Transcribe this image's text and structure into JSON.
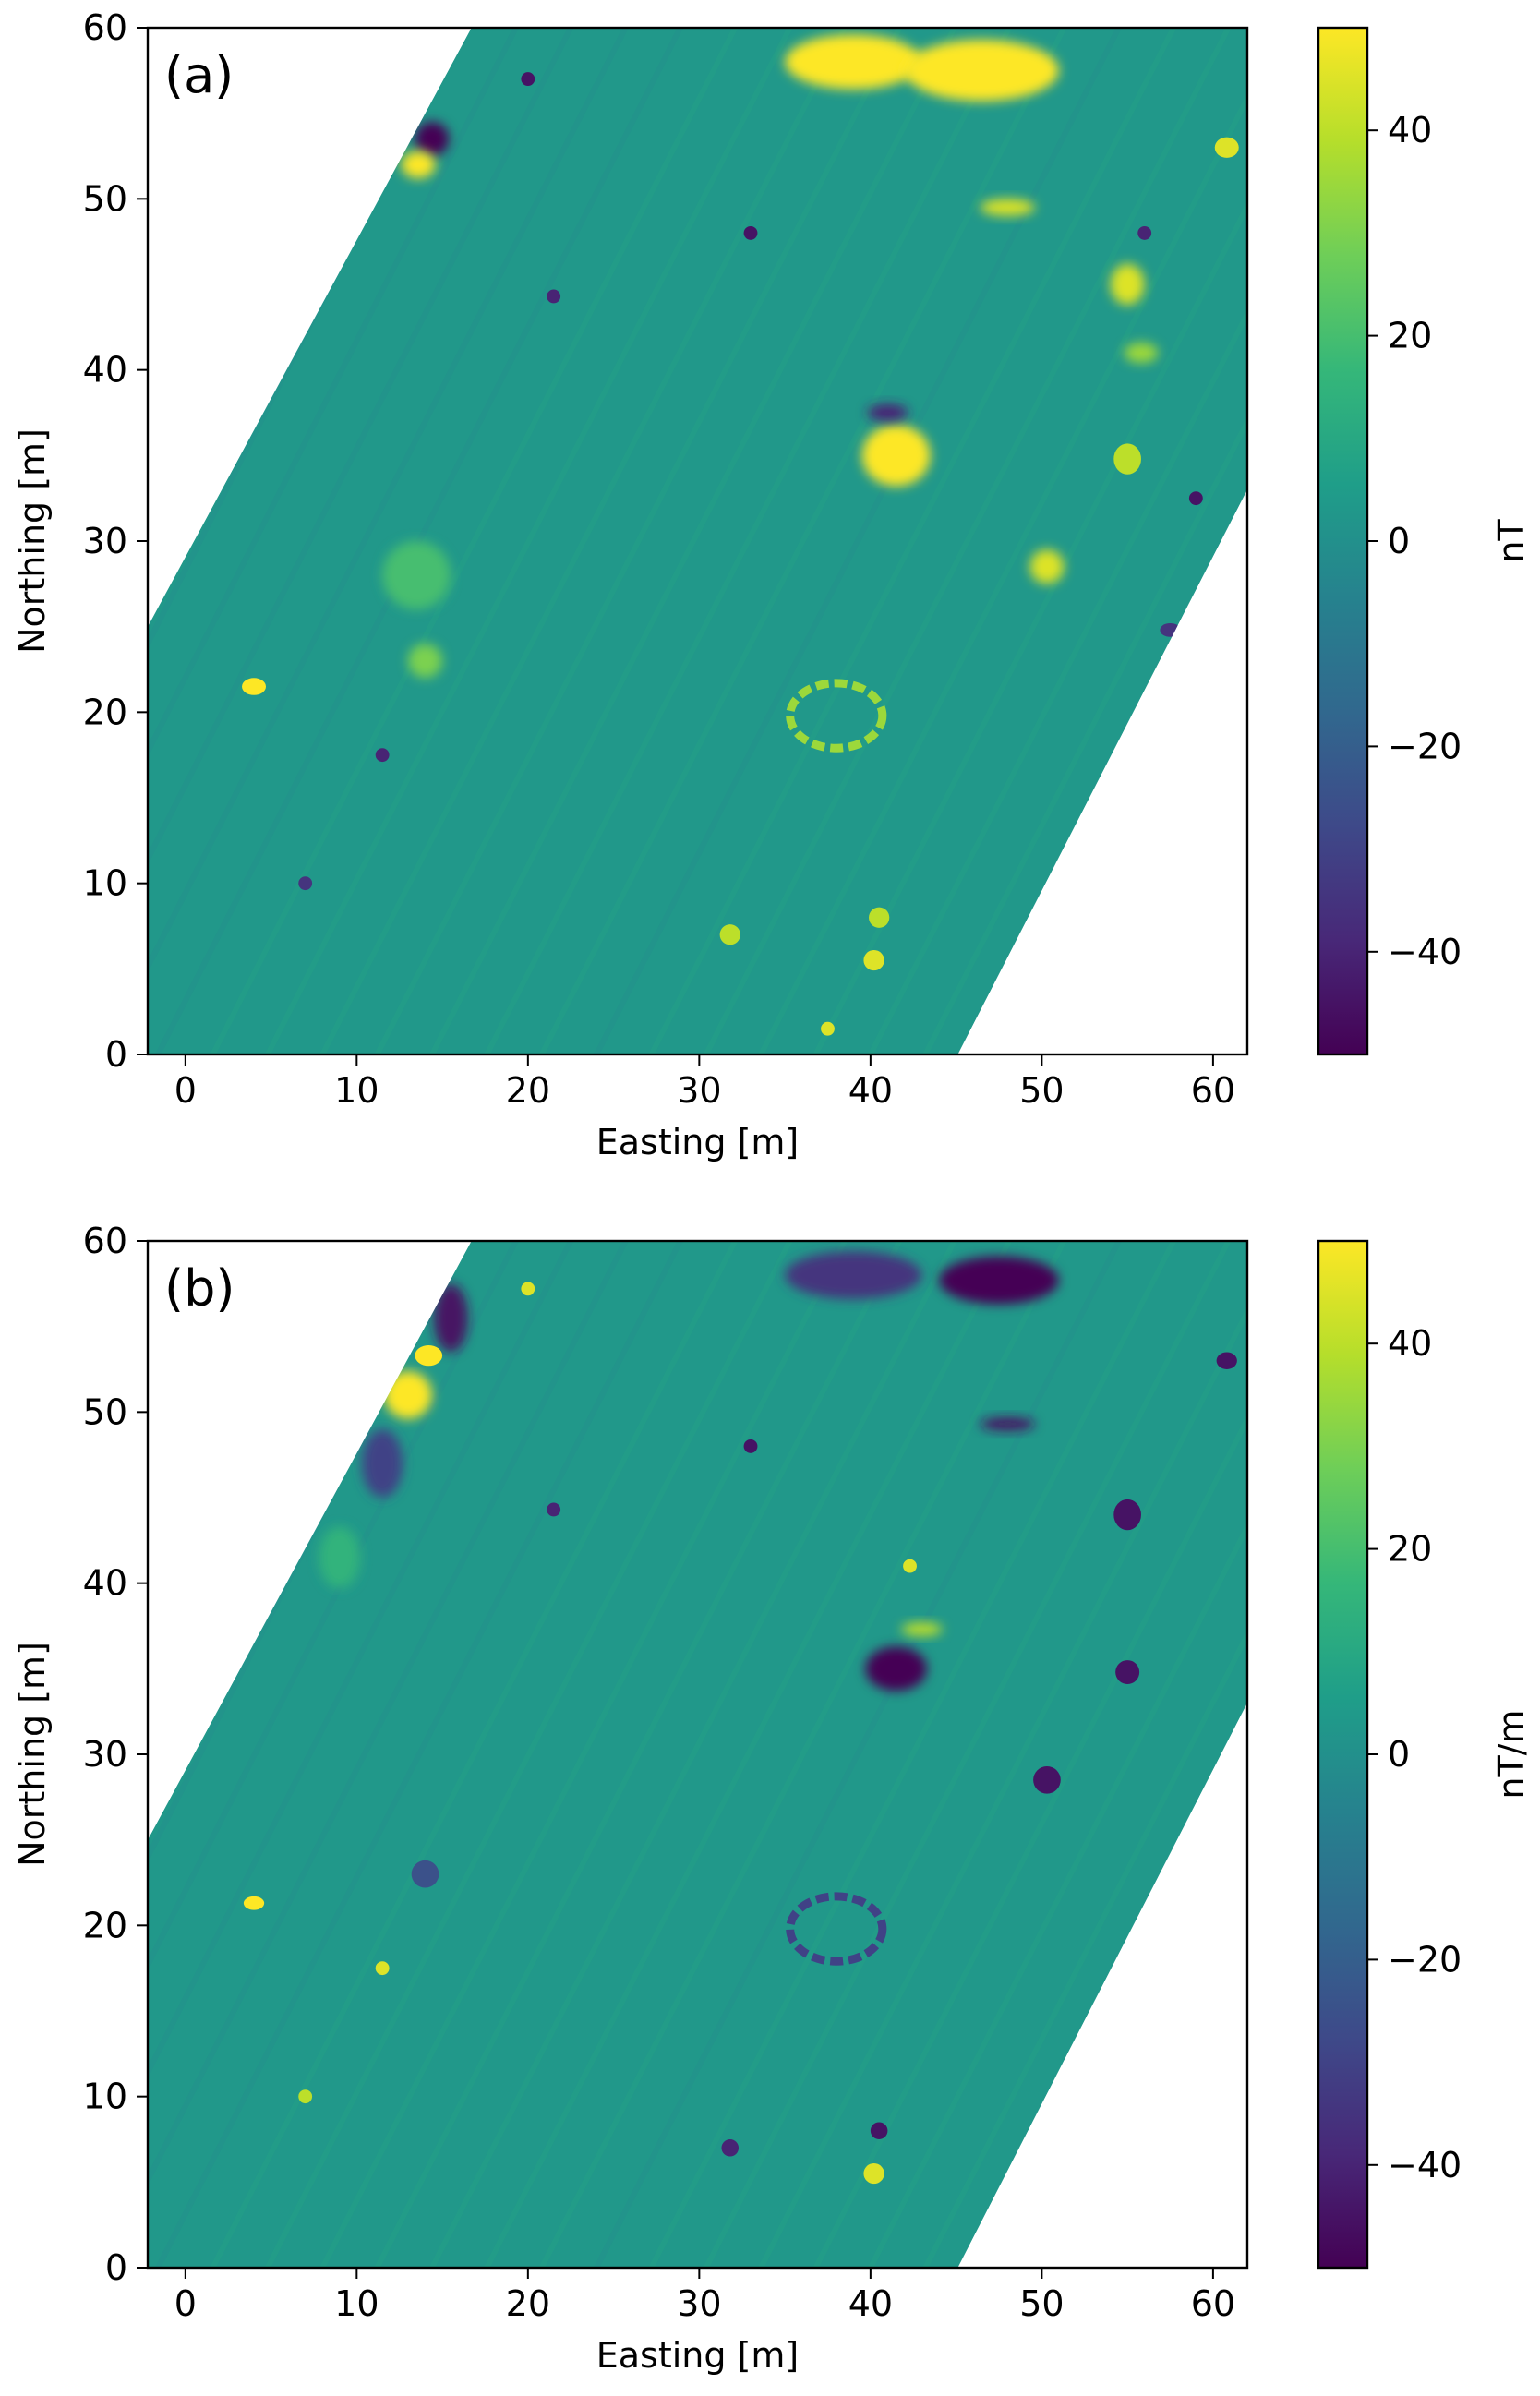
{
  "colormap": [
    "#440154",
    "#482878",
    "#3e4989",
    "#31688e",
    "#26828e",
    "#1f9e89",
    "#35b779",
    "#6ece58",
    "#b5de2b",
    "#fde725"
  ],
  "chart_data": [
    {
      "type": "heatmap",
      "panel_label": "(a)",
      "xlabel": "Easting [m]",
      "ylabel": "Northing [m]",
      "xlim": [
        -2.2,
        62
      ],
      "ylim": [
        0,
        60
      ],
      "x_ticks": [
        0,
        10,
        20,
        30,
        40,
        50,
        60
      ],
      "y_ticks": [
        0,
        10,
        20,
        30,
        40,
        50,
        60
      ],
      "colorbar": {
        "label": "nT",
        "range": [
          -50,
          50
        ],
        "ticks": [
          40,
          20,
          0,
          -20,
          -40
        ],
        "tick_labels": [
          "40",
          "20",
          "0",
          "−20",
          "−40"
        ]
      },
      "survey_outline": [
        [
          -2.2,
          0
        ],
        [
          45.1,
          0
        ],
        [
          62,
          33
        ],
        [
          62,
          60
        ],
        [
          16.7,
          60
        ],
        [
          -2.2,
          25
        ]
      ],
      "background_value": 3,
      "anomalies": [
        {
          "x": 39,
          "y": 58,
          "rx": 4,
          "ry": 1.6,
          "value": 50
        },
        {
          "x": 46.5,
          "y": 57.5,
          "rx": 4.5,
          "ry": 1.8,
          "value": 50
        },
        {
          "x": 14.4,
          "y": 53.5,
          "rx": 1.0,
          "ry": 1.0,
          "value": -50
        },
        {
          "x": 13.6,
          "y": 52.0,
          "rx": 1.0,
          "ry": 0.8,
          "value": 50
        },
        {
          "x": 41.5,
          "y": 35.0,
          "rx": 2.0,
          "ry": 1.8,
          "value": 50
        },
        {
          "x": 41.0,
          "y": 37.5,
          "rx": 1.2,
          "ry": 0.5,
          "value": -40
        },
        {
          "x": 55.0,
          "y": 45.0,
          "rx": 1.0,
          "ry": 1.2,
          "value": 45
        },
        {
          "x": 50.3,
          "y": 28.5,
          "rx": 1.0,
          "ry": 1.0,
          "value": 45
        },
        {
          "x": 55.0,
          "y": 34.8,
          "rx": 0.8,
          "ry": 0.9,
          "value": 40
        },
        {
          "x": 48.0,
          "y": 49.5,
          "rx": 1.6,
          "ry": 0.5,
          "value": 45
        },
        {
          "x": 4.0,
          "y": 21.5,
          "rx": 0.7,
          "ry": 0.5,
          "value": 50
        },
        {
          "x": 13.5,
          "y": 28.0,
          "rx": 2.0,
          "ry": 2.0,
          "value": 20
        },
        {
          "x": 14.0,
          "y": 23.0,
          "rx": 1.0,
          "ry": 1.0,
          "value": 30
        },
        {
          "x": 40.2,
          "y": 5.5,
          "rx": 0.6,
          "ry": 0.6,
          "value": 45
        },
        {
          "x": 40.5,
          "y": 8.0,
          "rx": 0.6,
          "ry": 0.6,
          "value": 40
        },
        {
          "x": 31.8,
          "y": 7.0,
          "rx": 0.6,
          "ry": 0.6,
          "value": 40
        },
        {
          "x": 60.8,
          "y": 53.0,
          "rx": 0.7,
          "ry": 0.6,
          "value": 45
        },
        {
          "x": 55.8,
          "y": 41.0,
          "rx": 1.0,
          "ry": 0.6,
          "value": 35
        },
        {
          "x": 33.0,
          "y": 48.0,
          "rx": 0.4,
          "ry": 0.4,
          "value": -45
        },
        {
          "x": 57.5,
          "y": 24.8,
          "rx": 0.6,
          "ry": 0.4,
          "value": -35
        },
        {
          "x": 20.0,
          "y": 57.0,
          "rx": 0.4,
          "ry": 0.4,
          "value": -45
        },
        {
          "x": 11.5,
          "y": 17.5,
          "rx": 0.4,
          "ry": 0.4,
          "value": -40
        },
        {
          "x": 7.0,
          "y": 10.0,
          "rx": 0.4,
          "ry": 0.4,
          "value": -35
        },
        {
          "x": 37.5,
          "y": 1.5,
          "rx": 0.4,
          "ry": 0.4,
          "value": 45
        },
        {
          "x": 21.5,
          "y": 44.3,
          "rx": 0.4,
          "ry": 0.4,
          "value": -40
        },
        {
          "x": 56.0,
          "y": 48.0,
          "rx": 0.4,
          "ry": 0.4,
          "value": -40
        },
        {
          "x": 59.0,
          "y": 32.5,
          "rx": 0.4,
          "ry": 0.4,
          "value": -45
        }
      ],
      "rings": [
        {
          "x": 38.0,
          "y": 19.8,
          "rx": 2.7,
          "ry": 1.9,
          "value": 35
        }
      ]
    },
    {
      "type": "heatmap",
      "panel_label": "(b)",
      "xlabel": "Easting [m]",
      "ylabel": "Northing [m]",
      "xlim": [
        -2.2,
        62
      ],
      "ylim": [
        0,
        60
      ],
      "x_ticks": [
        0,
        10,
        20,
        30,
        40,
        50,
        60
      ],
      "y_ticks": [
        0,
        10,
        20,
        30,
        40,
        50,
        60
      ],
      "colorbar": {
        "label": "nT/m",
        "range": [
          -50,
          50
        ],
        "ticks": [
          40,
          20,
          0,
          -20,
          -40
        ],
        "tick_labels": [
          "40",
          "20",
          "0",
          "−20",
          "−40"
        ]
      },
      "survey_outline": [
        [
          -2.2,
          0
        ],
        [
          45.1,
          0
        ],
        [
          62,
          33
        ],
        [
          62,
          60
        ],
        [
          16.7,
          60
        ],
        [
          -2.2,
          25
        ]
      ],
      "background_value": 3,
      "anomalies": [
        {
          "x": 39,
          "y": 58,
          "rx": 4,
          "ry": 1.4,
          "value": -35
        },
        {
          "x": 47.5,
          "y": 57.7,
          "rx": 3.5,
          "ry": 1.4,
          "value": -50
        },
        {
          "x": 15.5,
          "y": 55.5,
          "rx": 1.0,
          "ry": 2.0,
          "value": -45
        },
        {
          "x": 13.0,
          "y": 51.0,
          "rx": 1.4,
          "ry": 1.4,
          "value": 50
        },
        {
          "x": 14.2,
          "y": 53.3,
          "rx": 0.8,
          "ry": 0.6,
          "value": 50
        },
        {
          "x": 11.5,
          "y": 47.0,
          "rx": 1.2,
          "ry": 2.0,
          "value": -30
        },
        {
          "x": 9.0,
          "y": 41.5,
          "rx": 1.2,
          "ry": 1.8,
          "value": 15
        },
        {
          "x": 41.5,
          "y": 35.0,
          "rx": 1.8,
          "ry": 1.3,
          "value": -50
        },
        {
          "x": 43.0,
          "y": 37.3,
          "rx": 1.2,
          "ry": 0.4,
          "value": 40
        },
        {
          "x": 55.0,
          "y": 44.0,
          "rx": 0.8,
          "ry": 0.9,
          "value": -45
        },
        {
          "x": 50.3,
          "y": 28.5,
          "rx": 0.8,
          "ry": 0.8,
          "value": -45
        },
        {
          "x": 55.0,
          "y": 34.8,
          "rx": 0.7,
          "ry": 0.7,
          "value": -45
        },
        {
          "x": 48.0,
          "y": 49.3,
          "rx": 1.6,
          "ry": 0.4,
          "value": -45
        },
        {
          "x": 4.0,
          "y": 21.3,
          "rx": 0.6,
          "ry": 0.4,
          "value": 50
        },
        {
          "x": 40.2,
          "y": 5.5,
          "rx": 0.6,
          "ry": 0.6,
          "value": 45
        },
        {
          "x": 60.8,
          "y": 53.0,
          "rx": 0.6,
          "ry": 0.5,
          "value": -45
        },
        {
          "x": 33.0,
          "y": 48.0,
          "rx": 0.4,
          "ry": 0.4,
          "value": -45
        },
        {
          "x": 20.0,
          "y": 57.2,
          "rx": 0.4,
          "ry": 0.4,
          "value": 45
        },
        {
          "x": 11.5,
          "y": 17.5,
          "rx": 0.4,
          "ry": 0.4,
          "value": 45
        },
        {
          "x": 7.0,
          "y": 10.0,
          "rx": 0.4,
          "ry": 0.4,
          "value": 40
        },
        {
          "x": 40.5,
          "y": 8.0,
          "rx": 0.5,
          "ry": 0.5,
          "value": -45
        },
        {
          "x": 31.8,
          "y": 7.0,
          "rx": 0.5,
          "ry": 0.5,
          "value": -40
        },
        {
          "x": 21.5,
          "y": 44.3,
          "rx": 0.4,
          "ry": 0.4,
          "value": -40
        },
        {
          "x": 14.0,
          "y": 23.0,
          "rx": 0.8,
          "ry": 0.8,
          "value": -25
        },
        {
          "x": 42.3,
          "y": 41.0,
          "rx": 0.4,
          "ry": 0.4,
          "value": 45
        }
      ],
      "rings": [
        {
          "x": 38.0,
          "y": 19.8,
          "rx": 2.7,
          "ry": 1.9,
          "value": -30
        }
      ]
    }
  ]
}
